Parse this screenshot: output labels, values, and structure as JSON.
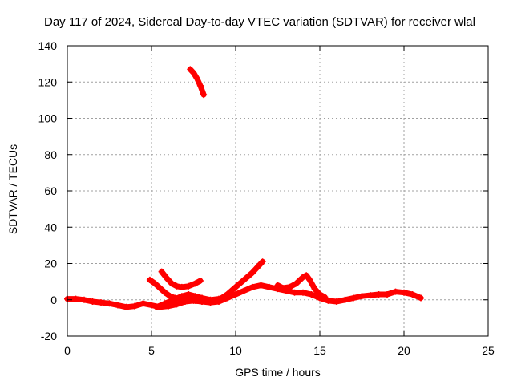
{
  "chart_data": {
    "type": "scatter",
    "title": "Day 117 of 2024, Sidereal Day-to-day VTEC variation (SDTVAR) for receiver wlal",
    "xlabel": "GPS time / hours",
    "ylabel": "SDTVAR / TECUs",
    "xlim": [
      0,
      25
    ],
    "ylim": [
      -20,
      140
    ],
    "xticks": [
      "0",
      "5",
      "10",
      "15",
      "20",
      "25"
    ],
    "yticks": [
      "-20",
      "0",
      "20",
      "40",
      "60",
      "80",
      "100",
      "120",
      "140"
    ],
    "grid": true,
    "series": [
      {
        "color": "#ff0000",
        "segments": [
          [
            [
              0.0,
              0.5
            ],
            [
              0.5,
              0.5
            ],
            [
              1.0,
              0.0
            ],
            [
              1.5,
              -1.0
            ],
            [
              2.0,
              -1.5
            ],
            [
              2.5,
              -2.0
            ],
            [
              3.0,
              -3.0
            ],
            [
              3.5,
              -4.0
            ],
            [
              4.0,
              -3.5
            ],
            [
              4.5,
              -2.0
            ],
            [
              5.0,
              -3.0
            ],
            [
              5.5,
              -4.0
            ],
            [
              6.0,
              -3.5
            ],
            [
              6.5,
              -2.5
            ],
            [
              7.0,
              -1.0
            ],
            [
              7.5,
              -0.5
            ],
            [
              8.0,
              -1.0
            ],
            [
              8.5,
              -1.5
            ],
            [
              9.0,
              -1.0
            ],
            [
              9.5,
              1.0
            ],
            [
              10.0,
              3.0
            ],
            [
              10.5,
              5.0
            ],
            [
              11.0,
              7.0
            ],
            [
              11.5,
              8.0
            ],
            [
              12.0,
              7.0
            ],
            [
              12.5,
              6.0
            ],
            [
              13.0,
              5.0
            ],
            [
              13.5,
              4.0
            ],
            [
              14.0,
              4.0
            ],
            [
              14.5,
              3.0
            ],
            [
              15.0,
              1.0
            ],
            [
              15.5,
              -0.5
            ],
            [
              16.0,
              -1.0
            ],
            [
              16.5,
              0.0
            ],
            [
              17.0,
              1.0
            ],
            [
              17.5,
              2.0
            ],
            [
              18.0,
              2.5
            ],
            [
              18.5,
              3.0
            ],
            [
              19.0,
              3.0
            ],
            [
              19.5,
              4.5
            ],
            [
              20.0,
              4.0
            ],
            [
              20.5,
              3.0
            ],
            [
              21.0,
              1.0
            ]
          ],
          [
            [
              4.9,
              11.0
            ],
            [
              5.2,
              9.0
            ],
            [
              5.5,
              6.5
            ],
            [
              5.8,
              4.0
            ],
            [
              6.1,
              2.0
            ],
            [
              6.4,
              1.0
            ],
            [
              6.8,
              0.5
            ],
            [
              7.2,
              0.0
            ],
            [
              7.6,
              -0.5
            ],
            [
              8.0,
              -1.0
            ]
          ],
          [
            [
              5.6,
              15.5
            ],
            [
              5.9,
              12.0
            ],
            [
              6.2,
              9.0
            ],
            [
              6.5,
              7.5
            ],
            [
              6.8,
              7.0
            ],
            [
              7.2,
              7.5
            ],
            [
              7.6,
              9.0
            ],
            [
              7.9,
              10.5
            ]
          ],
          [
            [
              5.3,
              -4.0
            ],
            [
              5.8,
              -2.0
            ],
            [
              6.3,
              0.0
            ],
            [
              6.8,
              2.0
            ],
            [
              7.2,
              3.0
            ],
            [
              7.6,
              2.0
            ],
            [
              8.0,
              1.0
            ],
            [
              8.5,
              0.0
            ],
            [
              9.0,
              0.5
            ]
          ],
          [
            [
              9.0,
              0.0
            ],
            [
              9.5,
              3.0
            ],
            [
              10.0,
              7.0
            ],
            [
              10.5,
              11.0
            ],
            [
              11.0,
              15.0
            ],
            [
              11.3,
              18.0
            ],
            [
              11.6,
              21.0
            ]
          ],
          [
            [
              12.5,
              8.0
            ],
            [
              12.8,
              6.5
            ],
            [
              13.2,
              7.0
            ],
            [
              13.6,
              9.0
            ],
            [
              14.0,
              12.5
            ],
            [
              14.2,
              13.5
            ],
            [
              14.4,
              11.0
            ],
            [
              14.7,
              6.0
            ],
            [
              15.0,
              3.0
            ],
            [
              15.3,
              1.5
            ]
          ],
          [
            [
              7.3,
              127.0
            ],
            [
              7.5,
              125.0
            ],
            [
              7.7,
              122.0
            ],
            [
              7.9,
              118.0
            ],
            [
              8.1,
              113.0
            ]
          ]
        ]
      }
    ]
  }
}
